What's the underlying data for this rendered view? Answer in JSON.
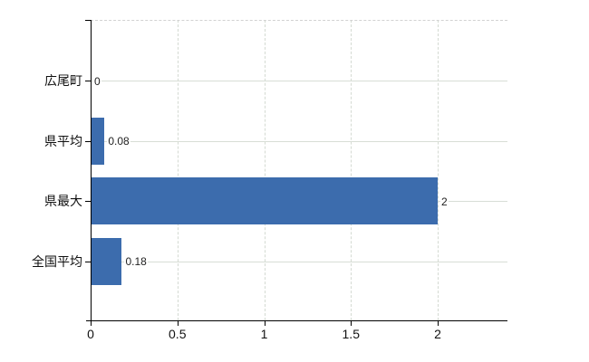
{
  "chart": {
    "background_color": "#ffffff",
    "bar_color": "#3c6cad",
    "horizontal_grid_color": "#d8ded6",
    "vertical_grid_color": "#d4dad2",
    "axis_color": "#000000",
    "text_color": "#111111",
    "value_label_color": "#222222"
  },
  "chart_data": {
    "type": "bar",
    "orientation": "horizontal",
    "title": "",
    "xlabel": "",
    "ylabel": "",
    "categories": [
      "広尾町",
      "県平均",
      "県最大",
      "全国平均"
    ],
    "values": [
      0,
      0.08,
      2,
      0.18
    ],
    "value_labels": [
      "0",
      "0.08",
      "2",
      "0.18"
    ],
    "x_ticks": [
      0,
      0.5,
      1,
      1.5,
      2
    ],
    "x_tick_labels": [
      "0",
      "0.5",
      "1",
      "1.5",
      "2"
    ],
    "xlim": [
      0,
      2.4
    ],
    "grid": true,
    "legend": false
  }
}
